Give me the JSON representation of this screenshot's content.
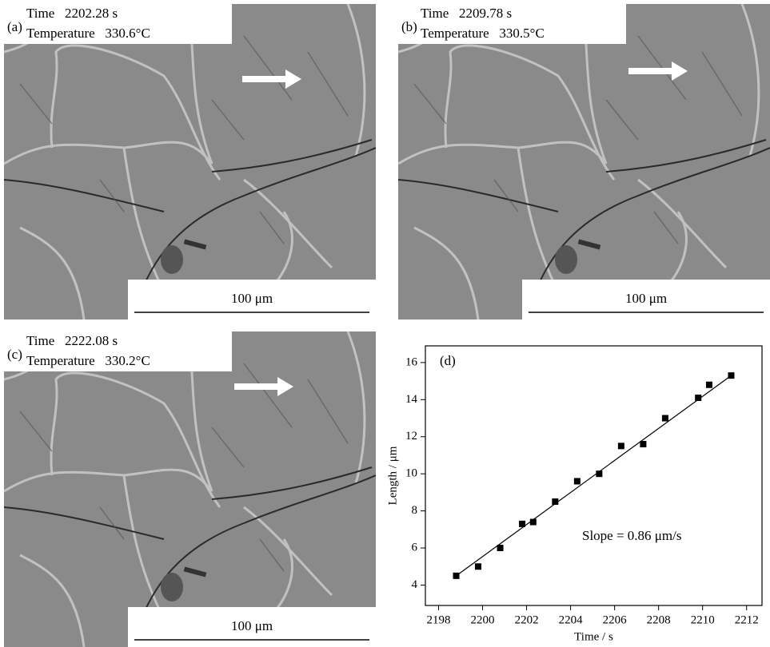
{
  "panels": [
    {
      "label": "(a)",
      "time": "Time   2202.28 s",
      "temperature": "Temperature   330.6°C",
      "scale": "100 μm"
    },
    {
      "label": "(b)",
      "time": "Time   2209.78 s",
      "temperature": "Temperature   330.5°C",
      "scale": "100 μm"
    },
    {
      "label": "(c)",
      "time": "Time   2222.08 s",
      "temperature": "Temperature   330.2°C",
      "scale": "100 μm"
    }
  ],
  "chart_data": {
    "type": "scatter",
    "panel_label": "(d)",
    "annotation": "Slope = 0.86 μm/s",
    "x_label": "Time / s",
    "y_label": "Length / μm",
    "x": [
      2198.8,
      2199.8,
      2200.8,
      2201.8,
      2202.3,
      2203.3,
      2204.3,
      2205.3,
      2206.3,
      2207.3,
      2208.3,
      2209.8,
      2210.3,
      2211.3
    ],
    "values": [
      4.5,
      5.0,
      6.0,
      7.3,
      7.4,
      8.5,
      9.6,
      10.0,
      11.5,
      11.6,
      13.0,
      14.1,
      14.8,
      15.3
    ],
    "color": "#000000",
    "fit": {
      "x": [
        2198.8,
        2211.3
      ],
      "y": [
        4.5,
        15.3
      ]
    },
    "xlim": [
      2197.4,
      2212.7
    ],
    "ylim": [
      2.9,
      16.9
    ],
    "xticks": [
      2198,
      2200,
      2202,
      2204,
      2206,
      2208,
      2210,
      2212
    ],
    "yticks": [
      4,
      6,
      8,
      10,
      12,
      14,
      16
    ]
  }
}
